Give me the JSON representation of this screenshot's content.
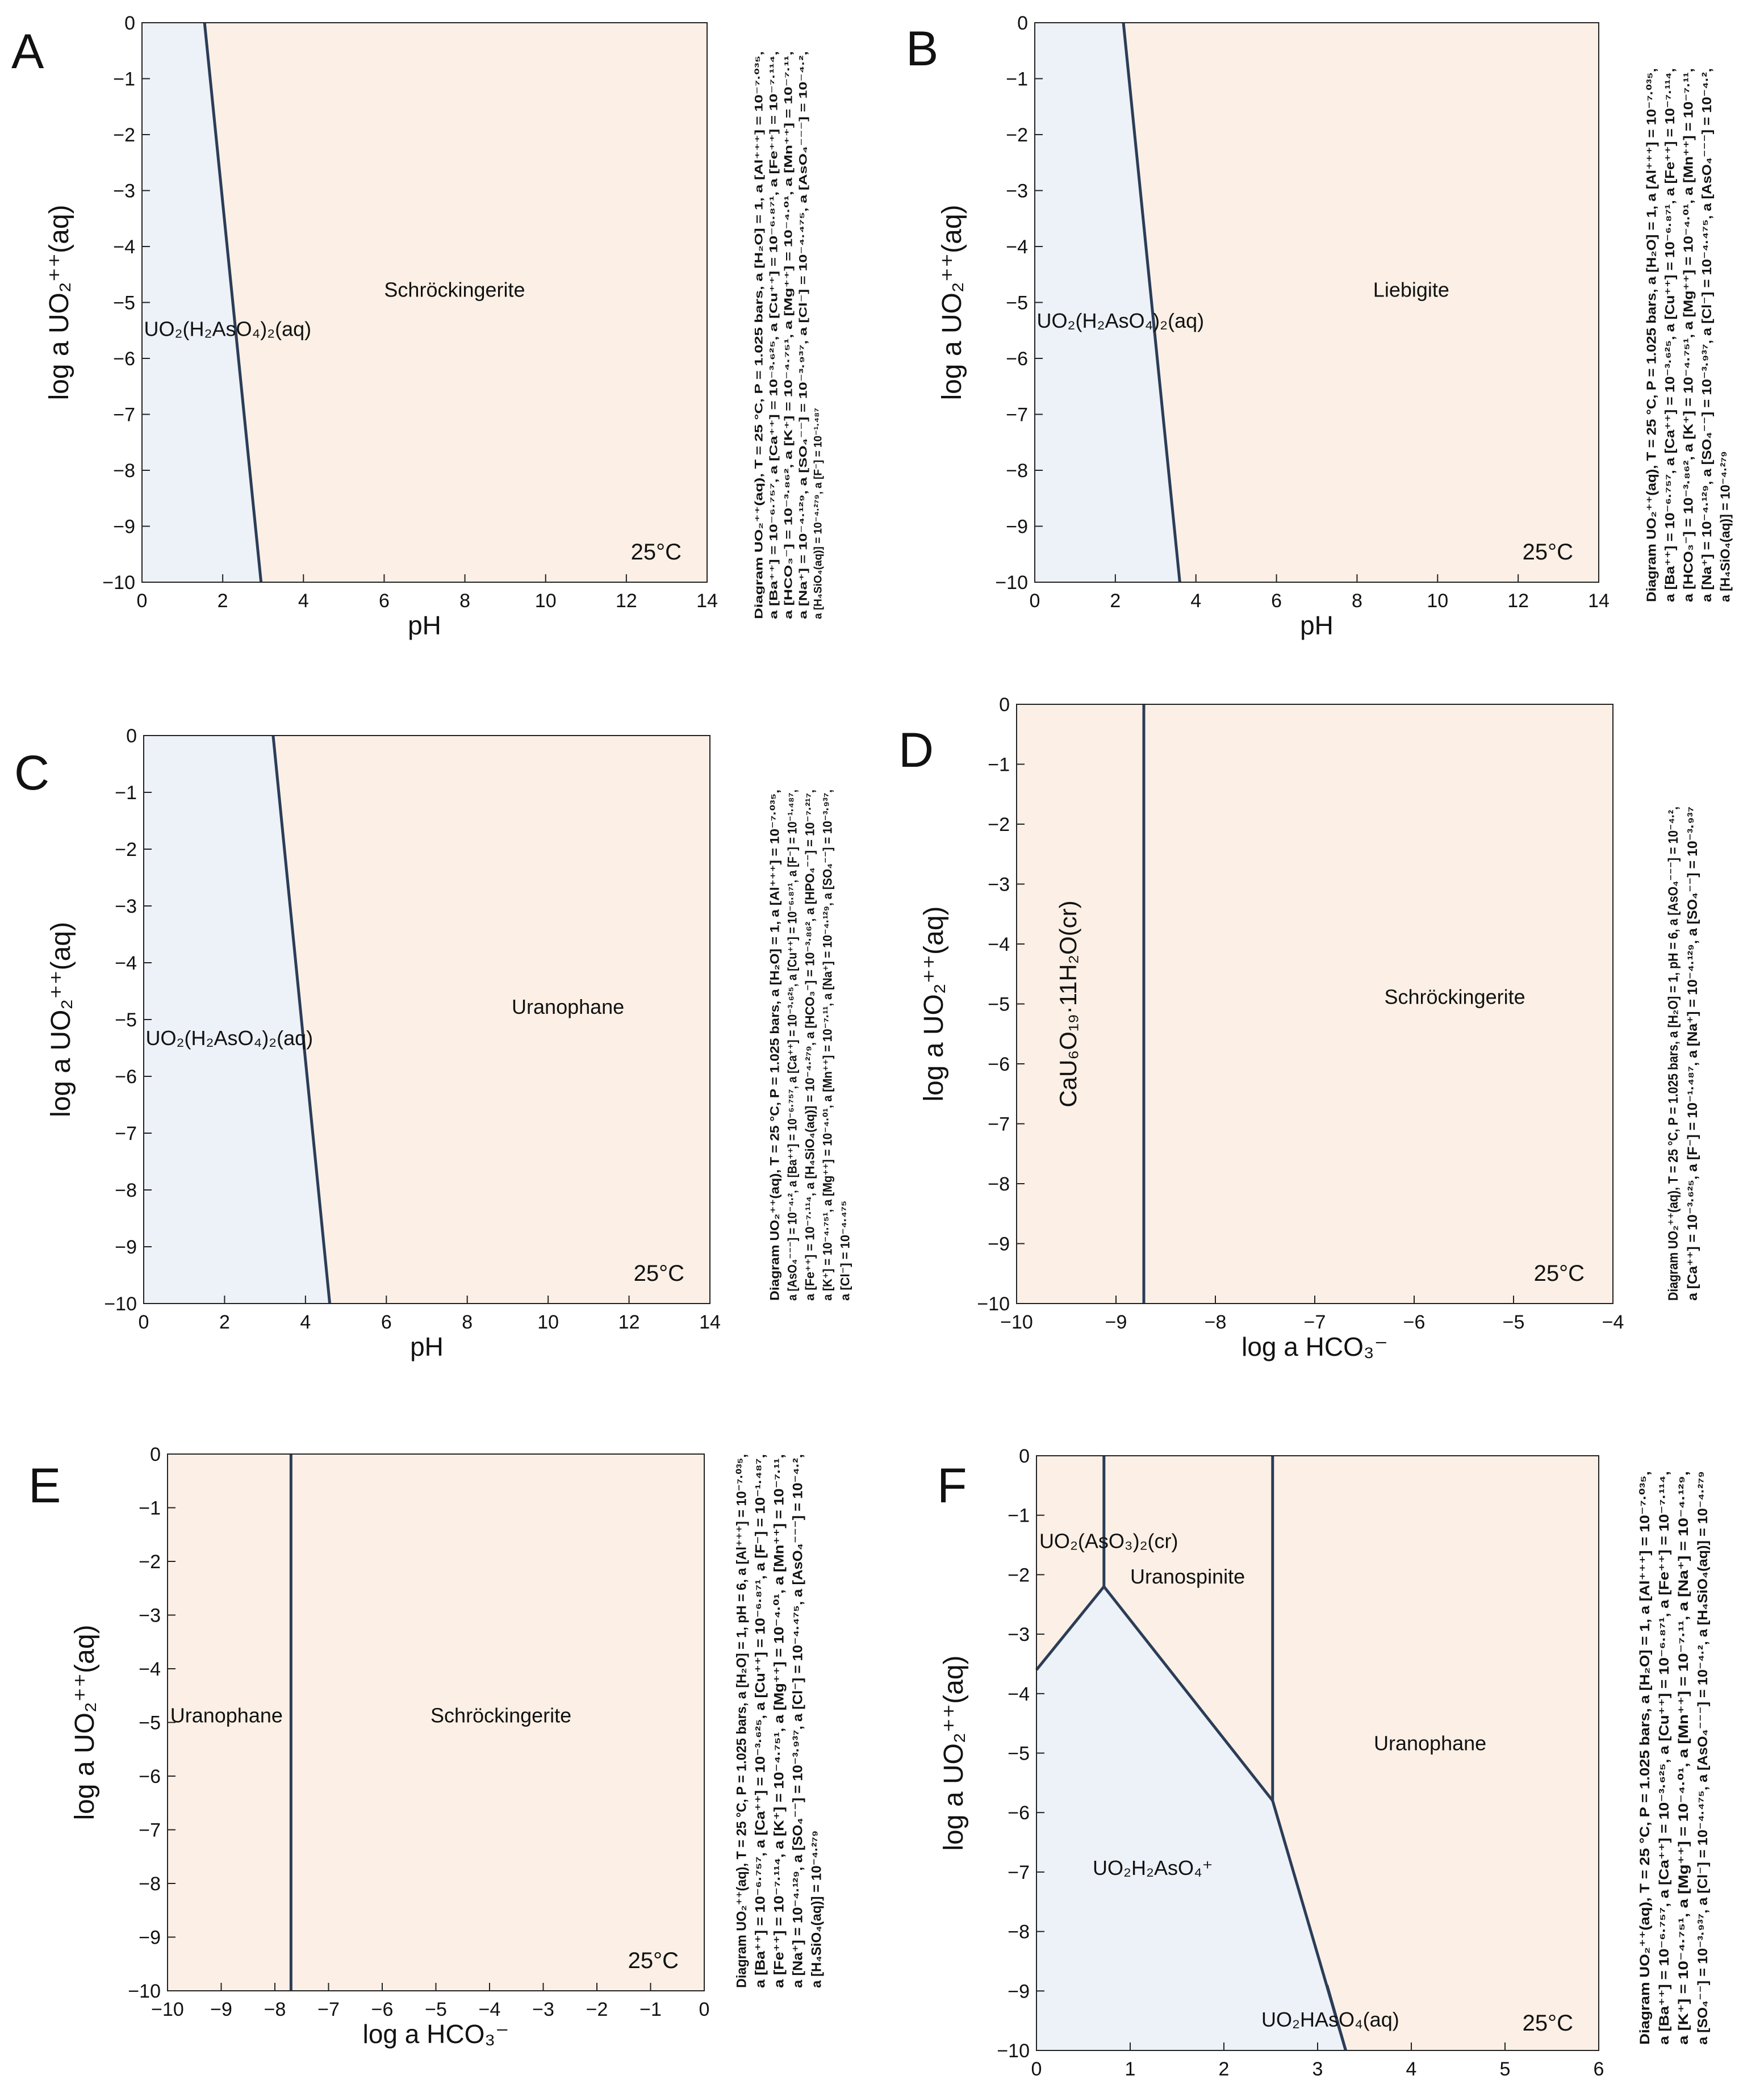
{
  "figure": {
    "fill_colors": {
      "left": "#edf1f8",
      "right": "#fcf0e6",
      "line": "#2b3d57"
    },
    "temperature_label": "25°C"
  },
  "chart_data": [
    {
      "panel": "A",
      "type": "phase-diagram",
      "xlabel": "pH",
      "ylabel": "log a UO₂⁺⁺(aq)",
      "xlim": [
        0,
        14
      ],
      "ylim": [
        -10,
        0
      ],
      "xticks": [
        "0",
        "2",
        "4",
        "6",
        "8",
        "10",
        "12",
        "14"
      ],
      "yticks": [
        "0",
        "−1",
        "−2",
        "−3",
        "−4",
        "−5",
        "−6",
        "−7",
        "−8",
        "−9",
        "−10"
      ],
      "boundaries": [
        {
          "points": [
            [
              1.55,
              0
            ],
            [
              2.95,
              -10
            ]
          ]
        }
      ],
      "fields": [
        {
          "name": "UO₂(H₂AsO₄)₂(aq)",
          "color": "#edf1f8",
          "polygon": [
            [
              0,
              0
            ],
            [
              1.55,
              0
            ],
            [
              2.95,
              -10
            ],
            [
              0,
              -10
            ]
          ],
          "label_at": [
            0.05,
            -5.6
          ]
        },
        {
          "name": "Schröckingerite",
          "color": "#fcf0e6",
          "polygon": [
            [
              1.55,
              0
            ],
            [
              14,
              0
            ],
            [
              14,
              -10
            ],
            [
              2.95,
              -10
            ]
          ],
          "label_at": [
            6,
            -4.9
          ]
        }
      ],
      "annotation": "Diagram UO₂⁺⁺(aq), T = 25 °C, P = 1.025 bars, a [H₂O] = 1, a [Al⁺⁺⁺] = 10⁻⁷·⁰³⁵, a [Ba⁺⁺] = 10⁻⁶·⁷⁵⁷, a [Ca⁺⁺] = 10⁻³·⁶²⁵, a [Cu⁺⁺] = 10⁻⁶·⁸⁷¹, a [Fe⁺⁺] = 10⁻⁷·¹¹⁴, a [HCO₃⁻] = 10⁻³·⁸⁶², a [K⁺] = 10⁻⁴·⁷⁵¹, a [Mg⁺⁺] = 10⁻⁴·⁰¹, a [Mn⁺⁺] = 10⁻⁷·¹¹, a [Na⁺] = 10⁻⁴·¹²⁹, a [SO₄⁻⁻] = 10⁻³·⁹³⁷, a [Cl⁻] = 10⁻⁴·⁴⁷⁵, a [AsO₄⁻⁻⁻] = 10⁻⁴·², a [H₄SiO₄(aq)] = 10⁻⁴·²⁷⁹, a [F⁻] = 10⁻¹·⁴⁸⁷",
      "annotation_lines": [
        "Diagram UO₂⁺⁺(aq), T = 25 °C, P = 1.025 bars, a [H₂O] = 1, a [Al⁺⁺⁺] = 10⁻⁷·⁰³⁵,",
        "a [Ba⁺⁺] = 10⁻⁶·⁷⁵⁷, a [Ca⁺⁺] = 10⁻³·⁶²⁵, a [Cu⁺⁺] = 10⁻⁶·⁸⁷¹, a [Fe⁺⁺] = 10⁻⁷·¹¹⁴,",
        "a [HCO₃⁻] = 10⁻³·⁸⁶², a [K⁺] = 10⁻⁴·⁷⁵¹, a [Mg⁺⁺] = 10⁻⁴·⁰¹, a [Mn⁺⁺] = 10⁻⁷·¹¹,",
        "a [Na⁺] = 10⁻⁴·¹²⁹, a [SO₄⁻⁻] = 10⁻³·⁹³⁷, a [Cl⁻] = 10⁻⁴·⁴⁷⁵, a [AsO₄⁻⁻⁻] = 10⁻⁴·²,",
        "a [H₄SiO₄(aq)] = 10⁻⁴·²⁷⁹, a [F⁻] = 10⁻¹·⁴⁸⁷"
      ]
    },
    {
      "panel": "B",
      "type": "phase-diagram",
      "xlabel": "pH",
      "ylabel": "log a UO₂⁺⁺(aq)",
      "xlim": [
        0,
        14
      ],
      "ylim": [
        -10,
        0
      ],
      "xticks": [
        "0",
        "2",
        "4",
        "6",
        "8",
        "10",
        "12",
        "14"
      ],
      "yticks": [
        "0",
        "−1",
        "−2",
        "−3",
        "−4",
        "−5",
        "−6",
        "−7",
        "−8",
        "−9",
        "−10"
      ],
      "boundaries": [
        {
          "points": [
            [
              2.2,
              0
            ],
            [
              3.6,
              -10
            ]
          ]
        }
      ],
      "fields": [
        {
          "name": "UO₂(H₂AsO₄)₂(aq)",
          "color": "#edf1f8",
          "polygon": [
            [
              0,
              0
            ],
            [
              2.2,
              0
            ],
            [
              3.6,
              -10
            ],
            [
              0,
              -10
            ]
          ],
          "label_at": [
            0.05,
            -5.45
          ]
        },
        {
          "name": "Liebigite",
          "color": "#fcf0e6",
          "polygon": [
            [
              2.2,
              0
            ],
            [
              14,
              0
            ],
            [
              14,
              -10
            ],
            [
              3.6,
              -10
            ]
          ],
          "label_at": [
            8.4,
            -4.9
          ]
        }
      ],
      "annotation": "Diagram UO₂⁺⁺(aq), T = 25 °C, P = 1.025 bars, a [H₂O] = 1, a [Al⁺⁺⁺] = 10⁻⁷·⁰³⁵, a [Ba⁺⁺] = 10⁻⁶·⁷⁵⁷, a [Ca⁺⁺] = 10⁻³·⁶²⁵, a [Cu⁺⁺] = 10⁻⁶·⁸⁷¹, a [Fe⁺⁺] = 10⁻⁷·¹¹⁴, a [HCO₃⁻] = 10⁻³·⁸⁶², a [K⁺] = 10⁻⁴·⁷⁵¹, a [Mg⁺⁺] = 10⁻⁴·⁰¹, a [Mn⁺⁺] = 10⁻⁷·¹¹, a [Na⁺] = 10⁻⁴·¹²⁹, a [SO₄⁻⁻] = 10⁻³·⁹³⁷, a [Cl⁻] = 10⁻⁴·⁴⁷⁵, a [AsO₄⁻⁻⁻] = 10⁻⁴·², a [H₄SiO₄(aq)] = 10⁻⁴·²⁷⁹",
      "annotation_lines": [
        "Diagram UO₂⁺⁺(aq), T = 25 °C, P = 1.025 bars, a [H₂O] = 1, a [Al⁺⁺⁺] = 10⁻⁷·⁰³⁵,",
        "a [Ba⁺⁺] = 10⁻⁶·⁷⁵⁷, a [Ca⁺⁺] = 10⁻³·⁶²⁵, a [Cu⁺⁺] = 10⁻⁶·⁸⁷¹, a [Fe⁺⁺] = 10⁻⁷·¹¹⁴,",
        "a [HCO₃⁻] = 10⁻³·⁸⁶², a [K⁺] = 10⁻⁴·⁷⁵¹, a [Mg⁺⁺] = 10⁻⁴·⁰¹, a [Mn⁺⁺] = 10⁻⁷·¹¹,",
        "a [Na⁺] = 10⁻⁴·¹²⁹, a [SO₄⁻⁻] = 10⁻³·⁹³⁷, a [Cl⁻] = 10⁻⁴·⁴⁷⁵, a [AsO₄⁻⁻⁻] = 10⁻⁴·²,",
        "a [H₄SiO₄(aq)] = 10⁻⁴·²⁷⁹"
      ]
    },
    {
      "panel": "C",
      "type": "phase-diagram",
      "xlabel": "pH",
      "ylabel": "log a UO₂⁺⁺(aq)",
      "xlim": [
        0,
        14
      ],
      "ylim": [
        -10,
        0
      ],
      "xticks": [
        "0",
        "2",
        "4",
        "6",
        "8",
        "10",
        "12",
        "14"
      ],
      "yticks": [
        "0",
        "−1",
        "−2",
        "−3",
        "−4",
        "−5",
        "−6",
        "−7",
        "−8",
        "−9",
        "−10"
      ],
      "boundaries": [
        {
          "points": [
            [
              3.2,
              0
            ],
            [
              4.6,
              -10
            ]
          ]
        }
      ],
      "fields": [
        {
          "name": "UO₂(H₂AsO₄)₂(aq)",
          "color": "#edf1f8",
          "polygon": [
            [
              0,
              0
            ],
            [
              3.2,
              0
            ],
            [
              4.6,
              -10
            ],
            [
              0,
              -10
            ]
          ],
          "label_at": [
            0.05,
            -5.45
          ]
        },
        {
          "name": "Uranophane",
          "color": "#fcf0e6",
          "polygon": [
            [
              3.2,
              0
            ],
            [
              14,
              0
            ],
            [
              14,
              -10
            ],
            [
              4.6,
              -10
            ]
          ],
          "label_at": [
            9.1,
            -4.9
          ]
        }
      ],
      "annotation": "Diagram UO₂⁺⁺(aq), T = 25 °C, P = 1.025 bars, a [H₂O] = 1, a [Al⁺⁺⁺] = 10⁻⁷·⁰³⁵, a [AsO₄⁻⁻⁻] = 10⁻⁴·², a [Ba⁺⁺] = 10⁻⁶·⁷⁵⁷, a [Ca⁺⁺] = 10⁻³·⁶²⁵, a [Cu⁺⁺] = 10⁻⁶·⁸⁷¹, a [F⁻] = 10⁻¹·⁴⁸⁷, a [Fe⁺⁺] = 10⁻⁷·¹¹⁴, a [H₄SiO₄(aq)] = 10⁻⁴·²⁷⁹, a [HCO₃⁻] = 10⁻³·⁸⁶², a [HPO₄⁻⁻] = 10⁻⁷·²¹⁷, a [K⁺] = 10⁻⁴·⁷⁵¹, a [Mg⁺⁺] = 10⁻⁴·⁰¹, a [Mn⁺⁺] = 10⁻⁷·¹¹, a [Na⁺] = 10⁻⁴·¹²⁹, a [SO₄⁻⁻] = 10⁻³·⁹³⁷, a [Cl⁻] = 10⁻⁴·⁴⁷⁵",
      "annotation_lines": [
        "Diagram UO₂⁺⁺(aq), T = 25 °C, P = 1.025 bars, a [H₂O] = 1, a [Al⁺⁺⁺] = 10⁻⁷·⁰³⁵,",
        "a [AsO₄⁻⁻⁻] = 10⁻⁴·², a [Ba⁺⁺] = 10⁻⁶·⁷⁵⁷, a [Ca⁺⁺] = 10⁻³·⁶²⁵, a [Cu⁺⁺] = 10⁻⁶·⁸⁷¹, a [F⁻] = 10⁻¹·⁴⁸⁷,",
        "a [Fe⁺⁺] = 10⁻⁷·¹¹⁴, a [H₄SiO₄(aq)] = 10⁻⁴·²⁷⁹, a [HCO₃⁻] = 10⁻³·⁸⁶², a [HPO₄⁻⁻] = 10⁻⁷·²¹⁷,",
        "a [K⁺] = 10⁻⁴·⁷⁵¹, a [Mg⁺⁺] = 10⁻⁴·⁰¹, a [Mn⁺⁺] = 10⁻⁷·¹¹, a [Na⁺] = 10⁻⁴·¹²⁹, a [SO₄⁻⁻] = 10⁻³·⁹³⁷,",
        "a [Cl⁻] = 10⁻⁴·⁴⁷⁵"
      ]
    },
    {
      "panel": "D",
      "type": "phase-diagram",
      "xlabel": "log a HCO₃⁻",
      "ylabel": "log a UO₂⁺⁺(aq)",
      "xlim": [
        -10,
        -4
      ],
      "ylim": [
        -10,
        0
      ],
      "xticks": [
        "−10",
        "−9",
        "−8",
        "−7",
        "−6",
        "−5",
        "−4"
      ],
      "yticks": [
        "0",
        "−1",
        "−2",
        "−3",
        "−4",
        "−5",
        "−6",
        "−7",
        "−8",
        "−9",
        "−10"
      ],
      "boundaries": [
        {
          "points": [
            [
              -8.72,
              0
            ],
            [
              -8.72,
              -10
            ]
          ]
        }
      ],
      "fields": [
        {
          "name": "CaU₆O₁₉·11H₂O(cr)",
          "color": "#fcf0e6",
          "polygon": [
            [
              -10,
              0
            ],
            [
              -8.72,
              0
            ],
            [
              -8.72,
              -10
            ],
            [
              -10,
              -10
            ]
          ],
          "label_at": [
            -9.4,
            -5
          ],
          "rotated": true
        },
        {
          "name": "Schröckingerite",
          "color": "#fcf0e6",
          "polygon": [
            [
              -8.72,
              0
            ],
            [
              -4,
              0
            ],
            [
              -4,
              -10
            ],
            [
              -8.72,
              -10
            ]
          ],
          "label_at": [
            -6.3,
            -5
          ]
        }
      ],
      "annotation": "Diagram UO₂⁺⁺(aq), T = 25 °C, P = 1.025 bars, a [H₂O] = 1, pH = 6, a [AsO₄⁻⁻⁻] = 10⁻⁴·², a [Ca⁺⁺] = 10⁻³·⁶²⁵, a [F⁻] = 10⁻¹·⁴⁸⁷, a [Na⁺] = 10⁻⁴·¹²⁹, a [SO₄⁻⁻] = 10⁻³·⁹³⁷",
      "annotation_lines": [
        "Diagram UO₂⁺⁺(aq), T = 25 °C, P = 1.025 bars, a [H₂O] = 1, pH = 6, a [AsO₄⁻⁻⁻] = 10⁻⁴·²,",
        "a [Ca⁺⁺] = 10⁻³·⁶²⁵, a [F⁻] = 10⁻¹·⁴⁸⁷, a [Na⁺] = 10⁻⁴·¹²⁹, a [SO₄⁻⁻] = 10⁻³·⁹³⁷"
      ]
    },
    {
      "panel": "E",
      "type": "phase-diagram",
      "xlabel": "log a HCO₃⁻",
      "ylabel": "log a UO₂⁺⁺(aq)",
      "xlim": [
        -10,
        0
      ],
      "ylim": [
        -10,
        0
      ],
      "xticks": [
        "−10",
        "−9",
        "−8",
        "−7",
        "−6",
        "−5",
        "−4",
        "−3",
        "−2",
        "−1",
        "0"
      ],
      "yticks": [
        "0",
        "−1",
        "−2",
        "−3",
        "−4",
        "−5",
        "−6",
        "−7",
        "−8",
        "−9",
        "−10"
      ],
      "boundaries": [
        {
          "points": [
            [
              -7.7,
              0
            ],
            [
              -7.7,
              -10
            ]
          ]
        }
      ],
      "fields": [
        {
          "name": "Uranophane",
          "color": "#fcf0e6",
          "polygon": [
            [
              -10,
              0
            ],
            [
              -7.7,
              0
            ],
            [
              -7.7,
              -10
            ],
            [
              -10,
              -10
            ]
          ],
          "label_at": [
            -9.95,
            -5
          ]
        },
        {
          "name": "Schröckingerite",
          "color": "#fcf0e6",
          "polygon": [
            [
              -7.7,
              0
            ],
            [
              0,
              0
            ],
            [
              0,
              -10
            ],
            [
              -7.7,
              -10
            ]
          ],
          "label_at": [
            -5.1,
            -5
          ]
        }
      ],
      "annotation": "Diagram UO₂⁺⁺(aq), T = 25 °C, P = 1.025 bars, a [H₂O] = 1, pH = 6, a [Al⁺⁺⁺] = 10⁻⁷·⁰³⁵, a [Ba⁺⁺] = 10⁻⁶·⁷⁵⁷, a [Ca⁺⁺] = 10⁻³·⁶²⁵, a [Cu⁺⁺] = 10⁻⁶·⁸⁷¹, a [F⁻] = 10⁻¹·⁴⁸⁷, a [Fe⁺⁺] = 10⁻⁷·¹¹⁴, a [K⁺] = 10⁻⁴·⁷⁵¹, a [Mg⁺⁺] = 10⁻⁴·⁰¹, a [Mn⁺⁺] = 10⁻⁷·¹¹, a [Na⁺] = 10⁻⁴·¹²⁹, a [SO₄⁻⁻] = 10⁻³·⁹³⁷, a [Cl⁻] = 10⁻⁴·⁴⁷⁵, a [AsO₄⁻⁻⁻] = 10⁻⁴·², a [H₄SiO₄(aq)] = 10⁻⁴·²⁷⁹",
      "annotation_lines": [
        "Diagram UO₂⁺⁺(aq), T = 25 °C, P = 1.025 bars, a [H₂O] = 1, pH = 6, a [Al⁺⁺⁺] = 10⁻⁷·⁰³⁵,",
        "a [Ba⁺⁺] = 10⁻⁶·⁷⁵⁷, a [Ca⁺⁺] = 10⁻³·⁶²⁵, a [Cu⁺⁺] = 10⁻⁶·⁸⁷¹, a [F⁻] = 10⁻¹·⁴⁸⁷,",
        "a [Fe⁺⁺] = 10⁻⁷·¹¹⁴, a [K⁺] = 10⁻⁴·⁷⁵¹, a [Mg⁺⁺] = 10⁻⁴·⁰¹, a [Mn⁺⁺] = 10⁻⁷·¹¹,",
        "a [Na⁺] = 10⁻⁴·¹²⁹, a [SO₄⁻⁻] = 10⁻³·⁹³⁷, a [Cl⁻] = 10⁻⁴·⁴⁷⁵, a [AsO₄⁻⁻⁻] = 10⁻⁴·²,",
        "a [H₄SiO₄(aq)] = 10⁻⁴·²⁷⁹"
      ]
    },
    {
      "panel": "F",
      "type": "phase-diagram",
      "xlabel": "pH",
      "ylabel": "log a UO₂⁺⁺(aq)",
      "xlim": [
        0,
        6
      ],
      "ylim": [
        -10,
        0
      ],
      "xticks": [
        "0",
        "1",
        "2",
        "3",
        "4",
        "5",
        "6"
      ],
      "yticks": [
        "0",
        "−1",
        "−2",
        "−3",
        "−4",
        "−5",
        "−6",
        "−7",
        "−8",
        "−9",
        "−10"
      ],
      "boundaries": [
        {
          "points": [
            [
              0.72,
              0
            ],
            [
              0.72,
              -2.2
            ]
          ]
        },
        {
          "points": [
            [
              0,
              -3.6
            ],
            [
              0.72,
              -2.2
            ],
            [
              2.52,
              -5.8
            ],
            [
              3.3,
              -10
            ]
          ]
        },
        {
          "points": [
            [
              2.52,
              0
            ],
            [
              2.52,
              -5.8
            ]
          ]
        },
        {
          "points": [
            [
              3.1,
              -8.9
            ],
            [
              3.3,
              -10
            ]
          ]
        }
      ],
      "fields": [
        {
          "name": "UO₂(AsO₃)₂(cr)",
          "color": "#fcf0e6",
          "polygon": [
            [
              0,
              0
            ],
            [
              0.72,
              0
            ],
            [
              0.72,
              -2.2
            ],
            [
              0,
              -3.6
            ]
          ],
          "label_at": [
            0.03,
            -1.55
          ]
        },
        {
          "name": "Uranospinite",
          "color": "#fcf0e6",
          "polygon": [
            [
              0.72,
              0
            ],
            [
              2.52,
              0
            ],
            [
              2.52,
              -5.8
            ],
            [
              0.72,
              -2.2
            ]
          ],
          "label_at": [
            1.0,
            -2.15
          ]
        },
        {
          "name": "Uranophane",
          "color": "#fcf0e6",
          "polygon": [
            [
              2.52,
              0
            ],
            [
              6,
              0
            ],
            [
              6,
              -10
            ],
            [
              3.3,
              -10
            ],
            [
              2.52,
              -5.8
            ]
          ],
          "label_at": [
            3.6,
            -4.95
          ]
        },
        {
          "name": "UO₂H₂AsO₄⁺",
          "color": "#edf1f8",
          "polygon": [
            [
              0,
              -3.6
            ],
            [
              0.72,
              -2.2
            ],
            [
              2.52,
              -5.8
            ],
            [
              3.3,
              -10
            ],
            [
              0,
              -10
            ]
          ],
          "label_at": [
            0.6,
            -7.05
          ]
        },
        {
          "name": "UO₂HAsO₄(aq)",
          "color": "#edf1f8",
          "polygon": [
            [
              2.9,
              -10
            ],
            [
              3.1,
              -8.9
            ],
            [
              3.3,
              -10
            ]
          ],
          "label_at": [
            2.4,
            -9.6
          ]
        }
      ],
      "annotation": "Diagram UO₂⁺⁺(aq), T = 25 °C, P = 1.025 bars, a [H₂O] = 1, a [Al⁺⁺⁺] = 10⁻⁷·⁰³⁵, a [Ba⁺⁺] = 10⁻⁶·⁷⁵⁷, a [Ca⁺⁺] = 10⁻³·⁶²⁵, a [Cu⁺⁺] = 10⁻⁶·⁸⁷¹, a [Fe⁺⁺] = 10⁻⁷·¹¹⁴, a [K⁺] = 10⁻⁴·⁷⁵¹, a [Mg⁺⁺] = 10⁻⁴·⁰¹, a [Mn⁺⁺] = 10⁻⁷·¹¹, a [Na⁺] = 10⁻⁴·¹²⁹, a [SO₄⁻⁻] = 10⁻³·⁹³⁷, a [Cl⁻] = 10⁻⁴·⁴⁷⁵, a [AsO₄⁻⁻⁻] = 10⁻⁴·², a [H₄SiO₄(aq)] = 10⁻⁴·²⁷⁹",
      "annotation_lines": [
        "Diagram UO₂⁺⁺(aq), T = 25 °C, P = 1.025 bars, a [H₂O] = 1, a [Al⁺⁺⁺] = 10⁻⁷·⁰³⁵,",
        "a [Ba⁺⁺] = 10⁻⁶·⁷⁵⁷, a [Ca⁺⁺] = 10⁻³·⁶²⁵, a [Cu⁺⁺] = 10⁻⁶·⁸⁷¹, a [Fe⁺⁺] = 10⁻⁷·¹¹⁴,",
        "a [K⁺] = 10⁻⁴·⁷⁵¹, a [Mg⁺⁺] = 10⁻⁴·⁰¹, a [Mn⁺⁺] = 10⁻⁷·¹¹, a [Na⁺] = 10⁻⁴·¹²⁹,",
        "a [SO₄⁻⁻] = 10⁻³·⁹³⁷, a [Cl⁻] = 10⁻⁴·⁴⁷⁵, a [AsO₄⁻⁻⁻] = 10⁻⁴·², a [H₄SiO₄(aq)] = 10⁻⁴·²⁷⁹"
      ]
    }
  ]
}
